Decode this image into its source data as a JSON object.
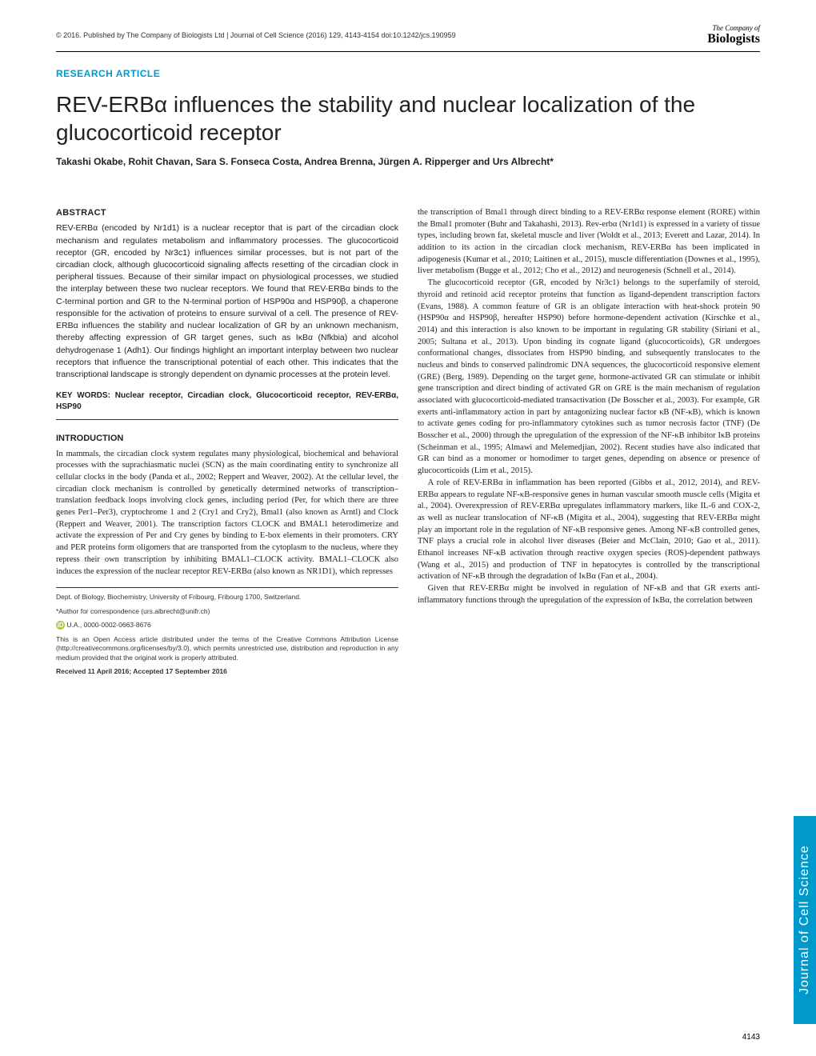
{
  "header": {
    "copyright": "© 2016. Published by The Company of Biologists Ltd | Journal of Cell Science (2016) 129, 4143-4154 doi:10.1242/jcs.190959",
    "logo_top": "The Company of",
    "logo_bottom": "Biologists"
  },
  "article": {
    "type": "RESEARCH ARTICLE",
    "title": "REV-ERBα influences the stability and nuclear localization of the glucocorticoid receptor",
    "authors": "Takashi Okabe, Rohit Chavan, Sara S. Fonseca Costa, Andrea Brenna, Jürgen A. Ripperger and Urs Albrecht*"
  },
  "abstract": {
    "head": "ABSTRACT",
    "text": "REV-ERBα (encoded by Nr1d1) is a nuclear receptor that is part of the circadian clock mechanism and regulates metabolism and inflammatory processes. The glucocorticoid receptor (GR, encoded by Nr3c1) influences similar processes, but is not part of the circadian clock, although glucocorticoid signaling affects resetting of the circadian clock in peripheral tissues. Because of their similar impact on physiological processes, we studied the interplay between these two nuclear receptors. We found that REV-ERBα binds to the C-terminal portion and GR to the N-terminal portion of HSP90α and HSP90β, a chaperone responsible for the activation of proteins to ensure survival of a cell. The presence of REV-ERBα influences the stability and nuclear localization of GR by an unknown mechanism, thereby affecting expression of GR target genes, such as IκBα (Nfkbia) and alcohol dehydrogenase 1 (Adh1). Our findings highlight an important interplay between two nuclear receptors that influence the transcriptional potential of each other. This indicates that the transcriptional landscape is strongly dependent on dynamic processes at the protein level."
  },
  "keywords": "KEY WORDS: Nuclear receptor, Circadian clock, Glucocorticoid receptor, REV-ERBα, HSP90",
  "introduction": {
    "head": "INTRODUCTION",
    "p1": "In mammals, the circadian clock system regulates many physiological, biochemical and behavioral processes with the suprachiasmatic nuclei (SCN) as the main coordinating entity to synchronize all cellular clocks in the body (Panda et al., 2002; Reppert and Weaver, 2002). At the cellular level, the circadian clock mechanism is controlled by genetically determined networks of transcription–translation feedback loops involving clock genes, including period (Per, for which there are three genes Per1–Per3), cryptochrome 1 and 2 (Cry1 and Cry2), Bmal1 (also known as Arntl) and Clock (Reppert and Weaver, 2001). The transcription factors CLOCK and BMAL1 heterodimerize and activate the expression of Per and Cry genes by binding to E-box elements in their promoters. CRY and PER proteins form oligomers that are transported from the cytoplasm to the nucleus, where they repress their own transcription by inhibiting BMAL1–CLOCK activity. BMAL1–CLOCK also induces the expression of the nuclear receptor REV-ERBα (also known as NR1D1), which represses"
  },
  "right_col": {
    "p1": "the transcription of Bmal1 through direct binding to a REV-ERBα response element (RORE) within the Bmal1 promoter (Buhr and Takahashi, 2013). Rev-erbα (Nr1d1) is expressed in a variety of tissue types, including brown fat, skeletal muscle and liver (Woldt et al., 2013; Everett and Lazar, 2014). In addition to its action in the circadian clock mechanism, REV-ERBα has been implicated in adipogenesis (Kumar et al., 2010; Laitinen et al., 2015), muscle differentiation (Downes et al., 1995), liver metabolism (Bugge et al., 2012; Cho et al., 2012) and neurogenesis (Schnell et al., 2014).",
    "p2": "The glucocorticoid receptor (GR, encoded by Nr3c1) belongs to the superfamily of steroid, thyroid and retinoid acid receptor proteins that function as ligand-dependent transcription factors (Evans, 1988). A common feature of GR is an obligate interaction with heat-shock protein 90 (HSP90α and HSP90β, hereafter HSP90) before hormone-dependent activation (Kirschke et al., 2014) and this interaction is also known to be important in regulating GR stability (Siriani et al., 2005; Sultana et al., 2013). Upon binding its cognate ligand (glucocorticoids), GR undergoes conformational changes, dissociates from HSP90 binding, and subsequently translocates to the nucleus and binds to conserved palindromic DNA sequences, the glucocorticoid responsive element (GRE) (Berg, 1989). Depending on the target gene, hormone-activated GR can stimulate or inhibit gene transcription and direct binding of activated GR on GRE is the main mechanism of regulation associated with glucocorticoid-mediated transactivation (De Bosscher et al., 2003). For example, GR exerts anti-inflammatory action in part by antagonizing nuclear factor κB (NF-κB), which is known to activate genes coding for pro-inflammatory cytokines such as tumor necrosis factor (TNF) (De Bosscher et al., 2000) through the upregulation of the expression of the NF-κB inhibitor IκB proteins (Scheinman et al., 1995; Almawi and Melemedjian, 2002). Recent studies have also indicated that GR can bind as a monomer or homodimer to target genes, depending on absence or presence of glucocorticoids (Lim et al., 2015).",
    "p3": "A role of REV-ERBα in inflammation has been reported (Gibbs et al., 2012, 2014), and REV-ERBα appears to regulate NF-κB-responsive genes in human vascular smooth muscle cells (Migita et al., 2004). Overexpression of REV-ERBα upregulates inflammatory markers, like IL-6 and COX-2, as well as nuclear translocation of NF-κB (Migita et al., 2004), suggesting that REV-ERBα might play an important role in the regulation of NF-κB responsive genes. Among NF-κB controlled genes, TNF plays a crucial role in alcohol liver diseases (Beier and McClain, 2010; Gao et al., 2011). Ethanol increases NF-κB activation through reactive oxygen species (ROS)-dependent pathways (Wang et al., 2015) and production of TNF in hepatocytes is controlled by the transcriptional activation of NF-κB through the degradation of IκBα (Fan et al., 2004).",
    "p4": "Given that REV-ERBα might be involved in regulation of NF-κB and that GR exerts anti-inflammatory functions through the upregulation of the expression of IκBα, the correlation between"
  },
  "footer": {
    "affiliation": "Dept. of Biology, Biochemistry, University of Fribourg, Fribourg 1700, Switzerland.",
    "correspondence": "*Author for correspondence (urs.albrecht@unifr.ch)",
    "orcid": "U.A., 0000-0002-0663-8676",
    "license": "This is an Open Access article distributed under the terms of the Creative Commons Attribution License (http://creativecommons.org/licenses/by/3.0), which permits unrestricted use, distribution and reproduction in any medium provided that the original work is properly attributed.",
    "dates": "Received 11 April 2016; Accepted 17 September 2016"
  },
  "page_number": "4143",
  "side_tab": "Journal of Cell Science",
  "colors": {
    "accent": "#0099cc",
    "orcid": "#a6ce39",
    "text": "#222222"
  }
}
